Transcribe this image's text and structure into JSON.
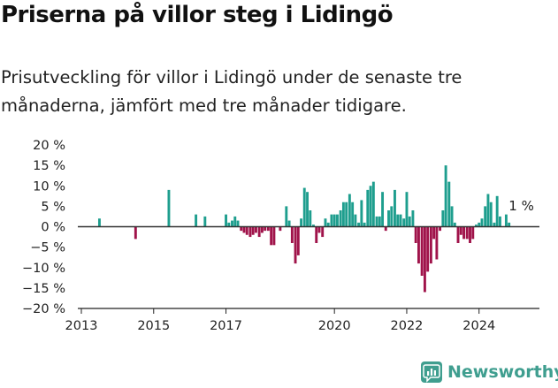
{
  "header": {
    "title": "Priserna på villor steg i Lidingö",
    "subtitle": "Prisutveckling för villor i Lidingö under de senaste tre månaderna, jämfört med tre månader tidigare."
  },
  "brand": {
    "name": "Newsworthy",
    "icon": "newsworthy-logo-icon",
    "color": "#3f9e8f"
  },
  "chart_data": {
    "type": "bar",
    "title": "Priserna på villor steg i Lidingö",
    "subtitle": "Prisutveckling för villor i Lidingö under de senaste tre månaderna, jämfört med tre månader tidigare.",
    "ylim": [
      -20,
      20
    ],
    "yticks": [
      20,
      15,
      10,
      5,
      0,
      -5,
      -10,
      -15,
      -20
    ],
    "ytick_labels": [
      "20 %",
      "15 %",
      "10 %",
      "5 %",
      "0 %",
      "−5 %",
      "−10 %",
      "−15 %",
      "−20 %"
    ],
    "xlim": [
      2013.0,
      2025.67
    ],
    "xticks": [
      2013,
      2015,
      2017,
      2020,
      2022,
      2024
    ],
    "xtick_labels": [
      "2013",
      "2015",
      "2017",
      "2020",
      "2022",
      "2024"
    ],
    "grid": false,
    "colors": {
      "positive": "#1e9e8e",
      "negative": "#a0134a"
    },
    "annotation": {
      "text": "1 %",
      "x": 2025.17,
      "value": 1
    },
    "points": [
      {
        "x": 2013.5,
        "value": 2
      },
      {
        "x": 2014.5,
        "value": -3
      },
      {
        "x": 2015.42,
        "value": 9
      },
      {
        "x": 2016.17,
        "value": 3
      },
      {
        "x": 2016.42,
        "value": 2.5
      },
      {
        "x": 2017.0,
        "value": 3
      },
      {
        "x": 2017.08,
        "value": 1
      },
      {
        "x": 2017.17,
        "value": 1.5
      },
      {
        "x": 2017.25,
        "value": 2.5
      },
      {
        "x": 2017.33,
        "value": 1.5
      },
      {
        "x": 2017.42,
        "value": -1
      },
      {
        "x": 2017.5,
        "value": -1.5
      },
      {
        "x": 2017.58,
        "value": -2
      },
      {
        "x": 2017.67,
        "value": -2.5
      },
      {
        "x": 2017.75,
        "value": -2
      },
      {
        "x": 2017.83,
        "value": -1.5
      },
      {
        "x": 2017.92,
        "value": -2.5
      },
      {
        "x": 2018.0,
        "value": -1.5
      },
      {
        "x": 2018.08,
        "value": -1
      },
      {
        "x": 2018.17,
        "value": -1
      },
      {
        "x": 2018.25,
        "value": -4.5
      },
      {
        "x": 2018.33,
        "value": -4.5
      },
      {
        "x": 2018.5,
        "value": -1
      },
      {
        "x": 2018.67,
        "value": 5
      },
      {
        "x": 2018.75,
        "value": 1.5
      },
      {
        "x": 2018.83,
        "value": -4
      },
      {
        "x": 2018.92,
        "value": -9
      },
      {
        "x": 2019.0,
        "value": -7
      },
      {
        "x": 2019.08,
        "value": 2
      },
      {
        "x": 2019.17,
        "value": 9.5
      },
      {
        "x": 2019.25,
        "value": 8.5
      },
      {
        "x": 2019.33,
        "value": 4
      },
      {
        "x": 2019.42,
        "value": 0.5
      },
      {
        "x": 2019.5,
        "value": -4
      },
      {
        "x": 2019.58,
        "value": -1.5
      },
      {
        "x": 2019.67,
        "value": -2.5
      },
      {
        "x": 2019.75,
        "value": 2
      },
      {
        "x": 2019.83,
        "value": 1
      },
      {
        "x": 2019.92,
        "value": 3
      },
      {
        "x": 2020.0,
        "value": 3
      },
      {
        "x": 2020.08,
        "value": 3
      },
      {
        "x": 2020.17,
        "value": 4
      },
      {
        "x": 2020.25,
        "value": 6
      },
      {
        "x": 2020.33,
        "value": 6
      },
      {
        "x": 2020.42,
        "value": 8
      },
      {
        "x": 2020.5,
        "value": 6
      },
      {
        "x": 2020.58,
        "value": 3
      },
      {
        "x": 2020.67,
        "value": 1
      },
      {
        "x": 2020.75,
        "value": 6.5
      },
      {
        "x": 2020.83,
        "value": 1
      },
      {
        "x": 2020.92,
        "value": 9
      },
      {
        "x": 2021.0,
        "value": 10
      },
      {
        "x": 2021.08,
        "value": 11
      },
      {
        "x": 2021.17,
        "value": 2.5
      },
      {
        "x": 2021.25,
        "value": 2.5
      },
      {
        "x": 2021.33,
        "value": 8.5
      },
      {
        "x": 2021.42,
        "value": -1
      },
      {
        "x": 2021.5,
        "value": 4
      },
      {
        "x": 2021.58,
        "value": 5
      },
      {
        "x": 2021.67,
        "value": 9
      },
      {
        "x": 2021.75,
        "value": 3
      },
      {
        "x": 2021.83,
        "value": 3
      },
      {
        "x": 2021.92,
        "value": 2
      },
      {
        "x": 2022.0,
        "value": 8.5
      },
      {
        "x": 2022.08,
        "value": 2.5
      },
      {
        "x": 2022.17,
        "value": 4
      },
      {
        "x": 2022.25,
        "value": -4
      },
      {
        "x": 2022.33,
        "value": -9
      },
      {
        "x": 2022.42,
        "value": -12
      },
      {
        "x": 2022.5,
        "value": -16
      },
      {
        "x": 2022.58,
        "value": -11
      },
      {
        "x": 2022.67,
        "value": -9
      },
      {
        "x": 2022.75,
        "value": -3
      },
      {
        "x": 2022.83,
        "value": -8
      },
      {
        "x": 2022.92,
        "value": -1
      },
      {
        "x": 2023.0,
        "value": 4
      },
      {
        "x": 2023.08,
        "value": 15
      },
      {
        "x": 2023.17,
        "value": 11
      },
      {
        "x": 2023.25,
        "value": 5
      },
      {
        "x": 2023.33,
        "value": 1
      },
      {
        "x": 2023.42,
        "value": -4
      },
      {
        "x": 2023.5,
        "value": -2
      },
      {
        "x": 2023.58,
        "value": -3
      },
      {
        "x": 2023.67,
        "value": -3
      },
      {
        "x": 2023.75,
        "value": -4
      },
      {
        "x": 2023.83,
        "value": -3
      },
      {
        "x": 2023.92,
        "value": 0.5
      },
      {
        "x": 2024.0,
        "value": 1
      },
      {
        "x": 2024.08,
        "value": 2
      },
      {
        "x": 2024.17,
        "value": 5
      },
      {
        "x": 2024.25,
        "value": 8
      },
      {
        "x": 2024.33,
        "value": 6
      },
      {
        "x": 2024.42,
        "value": 1
      },
      {
        "x": 2024.5,
        "value": 7.5
      },
      {
        "x": 2024.58,
        "value": 2.5
      },
      {
        "x": 2024.75,
        "value": 3
      },
      {
        "x": 2024.83,
        "value": 1
      }
    ]
  }
}
